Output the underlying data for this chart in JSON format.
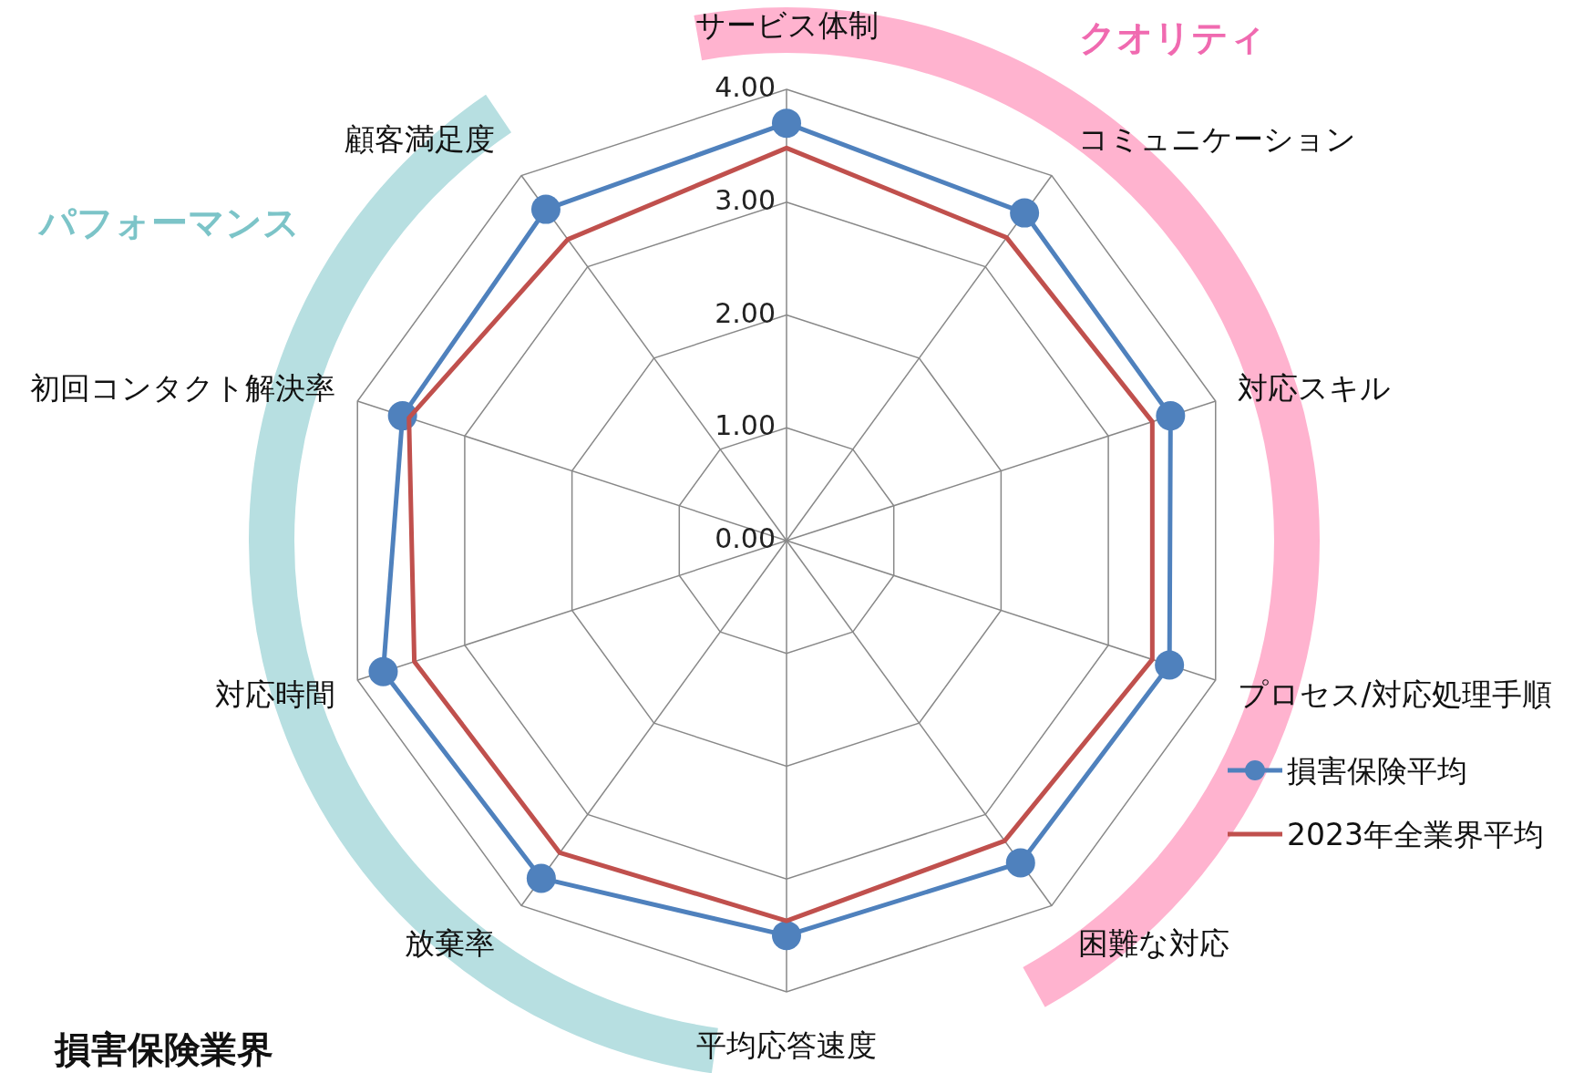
{
  "chart_data": {
    "type": "radar",
    "title": "損害保険業界",
    "categories": [
      "サービス体制",
      "コミュニケーション",
      "対応スキル",
      "プロセス/対応処理手順",
      "困難な対応",
      "平均応答速度",
      "放棄率",
      "対応時間",
      "初回コンタクト解決率",
      "顧客満足度"
    ],
    "series": [
      {
        "name": "損害保険平均",
        "color": "#4f81bd",
        "marker": "circle",
        "values": [
          3.7,
          3.59,
          3.58,
          3.57,
          3.53,
          3.5,
          3.7,
          3.76,
          3.58,
          3.63
        ]
      },
      {
        "name": "2023年全業界平均",
        "color": "#c0504d",
        "marker": "none",
        "values": [
          3.48,
          3.32,
          3.41,
          3.41,
          3.29,
          3.37,
          3.42,
          3.47,
          3.52,
          3.3
        ]
      }
    ],
    "ylim": [
      0,
      4
    ],
    "yticks": [
      {
        "value": 0,
        "label": "0.00"
      },
      {
        "value": 1,
        "label": "1.00"
      },
      {
        "value": 2,
        "label": "2.00"
      },
      {
        "value": 3,
        "label": "3.00"
      },
      {
        "value": 4,
        "label": "4.00"
      }
    ],
    "grid": true,
    "legend": "right",
    "annotations": [
      "クオリティ",
      "パフォーマンス"
    ]
  }
}
